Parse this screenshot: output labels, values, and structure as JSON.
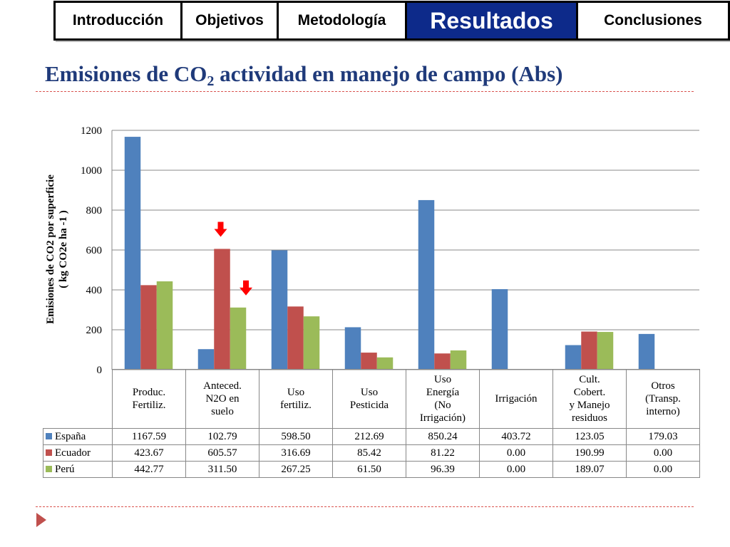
{
  "nav": {
    "tabs": [
      {
        "label": "Introducción",
        "active": false
      },
      {
        "label": "Objetivos",
        "active": false
      },
      {
        "label": "Metodología",
        "active": false
      },
      {
        "label": "Resultados",
        "active": true
      },
      {
        "label": "Conclusiones",
        "active": false
      }
    ]
  },
  "slide": {
    "title_main": "Emisiones de CO",
    "title_sub": "2",
    "title_rest": " actividad en manejo de campo (Abs)"
  },
  "colors": {
    "España": "#4f81bd",
    "Ecuador": "#c0504d",
    "Perú": "#9bbb59",
    "arrow": "#ff0000",
    "title": "#1f3a7a",
    "active_tab": "#0d2a8a"
  },
  "chart_data": {
    "type": "bar",
    "ylabel_line1": "Emisiones de CO2 por superficie",
    "ylabel_line2": "( kg CO2e ha -1 )",
    "ylim": [
      0,
      1200
    ],
    "yticks": [
      0,
      200,
      400,
      600,
      800,
      1000,
      1200
    ],
    "grid": true,
    "categories": [
      [
        "Produc.",
        "Fertiliz."
      ],
      [
        "Anteced.",
        "N2O en",
        "suelo"
      ],
      [
        "Uso",
        "fertiliz."
      ],
      [
        "Uso",
        "Pesticida"
      ],
      [
        "Uso",
        "Energía",
        "(No",
        "Irrigación)"
      ],
      [
        "Irrigación"
      ],
      [
        "Cult.",
        "Cobert.",
        "y Manejo",
        "residuos"
      ],
      [
        "Otros",
        "(Transp.",
        "interno)"
      ]
    ],
    "series": [
      {
        "name": "España",
        "values": [
          1167.59,
          102.79,
          598.5,
          212.69,
          850.24,
          403.72,
          123.05,
          179.03
        ]
      },
      {
        "name": "Ecuador",
        "values": [
          423.67,
          605.57,
          316.69,
          85.42,
          81.22,
          0.0,
          190.99,
          0.0
        ]
      },
      {
        "name": "Perú",
        "values": [
          442.77,
          311.5,
          267.25,
          61.5,
          96.39,
          0.0,
          189.07,
          0.0
        ]
      }
    ],
    "table_values": [
      [
        "1167.59",
        "102.79",
        "598.50",
        "212.69",
        "850.24",
        "403.72",
        "123.05",
        "179.03"
      ],
      [
        "423.67",
        "605.57",
        "316.69",
        "85.42",
        "81.22",
        "0.00",
        "190.99",
        "0.00"
      ],
      [
        "442.77",
        "311.50",
        "267.25",
        "61.50",
        "96.39",
        "0.00",
        "189.07",
        "0.00"
      ]
    ],
    "highlights": [
      {
        "series": 1,
        "category": 1
      },
      {
        "series": 2,
        "category": 1
      }
    ]
  }
}
